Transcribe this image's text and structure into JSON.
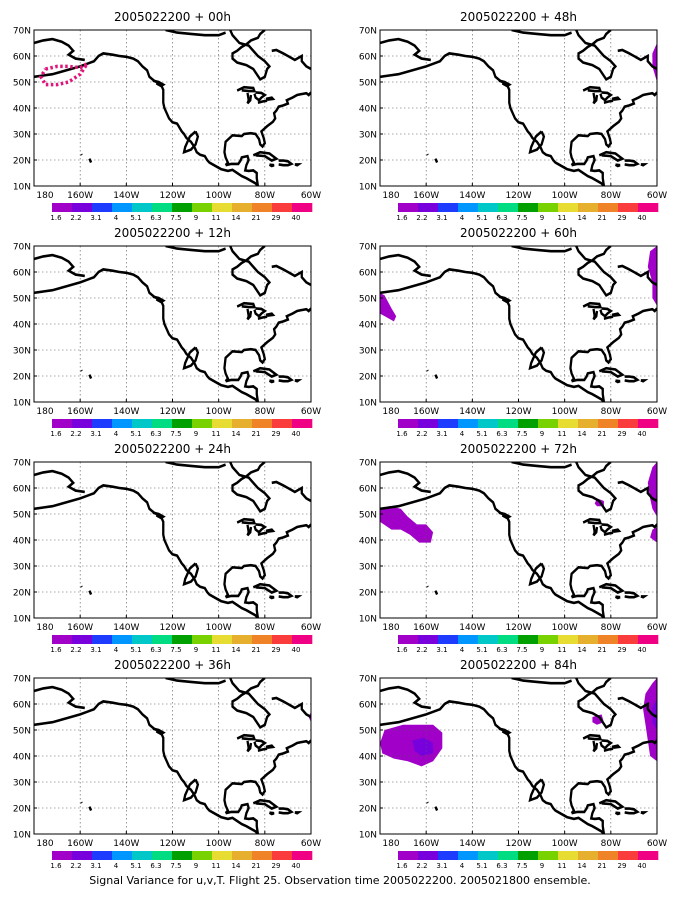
{
  "colorbar": {
    "labels": [
      "1.6",
      "2.2",
      "3.1",
      "4",
      "5.1",
      "6.3",
      "7.5",
      "9",
      "11",
      "14",
      "21",
      "29",
      "40"
    ],
    "colors": [
      "#a000c8",
      "#7800dc",
      "#1e3cff",
      "#0096ff",
      "#00c8c8",
      "#00dc82",
      "#00a000",
      "#78d200",
      "#e6dc32",
      "#e6af2d",
      "#f08228",
      "#fa3c3c",
      "#f00082"
    ]
  },
  "footer": "Signal Variance for u,v,T. Flight 25. Observation time 2005022200. 2005021800 ensemble.",
  "chart_data": [
    {
      "type": "heatmap",
      "title": "2005022200 + 00h",
      "x_ticks": [
        "180",
        "160W",
        "140W",
        "120W",
        "100W",
        "80W",
        "60W"
      ],
      "y_ticks": [
        "10N",
        "20N",
        "30N",
        "40N",
        "50N",
        "60N",
        "70N"
      ],
      "xlim": [
        -180,
        -60
      ],
      "ylim": [
        10,
        70
      ],
      "grid": true,
      "annotation": "dotted flight track (pink)",
      "features": []
    },
    {
      "type": "heatmap",
      "title": "2005022200 + 12h",
      "x_ticks": [
        "180",
        "160W",
        "140W",
        "120W",
        "100W",
        "80W",
        "60W"
      ],
      "y_ticks": [
        "10N",
        "20N",
        "30N",
        "40N",
        "50N",
        "60N",
        "70N"
      ],
      "xlim": [
        -180,
        -60
      ],
      "ylim": [
        10,
        70
      ],
      "grid": true,
      "features": []
    },
    {
      "type": "heatmap",
      "title": "2005022200 + 24h",
      "x_ticks": [
        "180",
        "160W",
        "140W",
        "120W",
        "100W",
        "80W",
        "60W"
      ],
      "y_ticks": [
        "10N",
        "20N",
        "30N",
        "40N",
        "50N",
        "60N",
        "70N"
      ],
      "xlim": [
        -180,
        -60
      ],
      "ylim": [
        10,
        70
      ],
      "grid": true,
      "features": []
    },
    {
      "type": "heatmap",
      "title": "2005022200 + 36h",
      "x_ticks": [
        "180",
        "160W",
        "140W",
        "120W",
        "100W",
        "80W",
        "60W"
      ],
      "y_ticks": [
        "10N",
        "20N",
        "30N",
        "40N",
        "50N",
        "60N",
        "70N"
      ],
      "xlim": [
        -180,
        -60
      ],
      "ylim": [
        10,
        70
      ],
      "grid": true,
      "features": [
        {
          "value": 1.6,
          "pts": [
            [
              -60,
              57
            ],
            [
              -61,
              55
            ],
            [
              -60,
              53
            ]
          ]
        }
      ]
    },
    {
      "type": "heatmap",
      "title": "2005022200 + 48h",
      "x_ticks": [
        "180",
        "160W",
        "140W",
        "120W",
        "100W",
        "80W",
        "60W"
      ],
      "y_ticks": [
        "10N",
        "20N",
        "30N",
        "40N",
        "50N",
        "60N",
        "70N"
      ],
      "xlim": [
        -180,
        -60
      ],
      "ylim": [
        10,
        70
      ],
      "grid": true,
      "features": [
        {
          "value": 1.6,
          "pts": [
            [
              -60,
              65
            ],
            [
              -62,
              61
            ],
            [
              -62,
              56
            ],
            [
              -60,
              50
            ]
          ]
        }
      ]
    },
    {
      "type": "heatmap",
      "title": "2005022200 + 60h",
      "x_ticks": [
        "180",
        "160W",
        "140W",
        "120W",
        "100W",
        "80W",
        "60W"
      ],
      "y_ticks": [
        "10N",
        "20N",
        "30N",
        "40N",
        "50N",
        "60N",
        "70N"
      ],
      "xlim": [
        -180,
        -60
      ],
      "ylim": [
        10,
        70
      ],
      "grid": true,
      "features": [
        {
          "value": 1.6,
          "pts": [
            [
              -180,
              52
            ],
            [
              -178,
              51
            ],
            [
              -175,
              46
            ],
            [
              -173,
              43
            ],
            [
              -174,
              41
            ],
            [
              -176,
              42
            ],
            [
              -180,
              44
            ]
          ]
        },
        {
          "value": 1.6,
          "pts": [
            [
              -60,
              70
            ],
            [
              -63,
              68
            ],
            [
              -64,
              62
            ],
            [
              -62,
              56
            ],
            [
              -62,
              50
            ],
            [
              -60,
              47
            ]
          ]
        }
      ]
    },
    {
      "type": "heatmap",
      "title": "2005022200 + 72h",
      "x_ticks": [
        "180",
        "160W",
        "140W",
        "120W",
        "100W",
        "80W",
        "60W"
      ],
      "y_ticks": [
        "10N",
        "20N",
        "30N",
        "40N",
        "50N",
        "60N",
        "70N"
      ],
      "xlim": [
        -180,
        -60
      ],
      "ylim": [
        10,
        70
      ],
      "grid": true,
      "features": [
        {
          "value": 1.6,
          "pts": [
            [
              -180,
              52
            ],
            [
              -176,
              53
            ],
            [
              -171,
              52
            ],
            [
              -168,
              49
            ],
            [
              -164,
              46
            ],
            [
              -160,
              46
            ],
            [
              -157,
              43
            ],
            [
              -158,
              39
            ],
            [
              -163,
              39
            ],
            [
              -167,
              42
            ],
            [
              -171,
              44
            ],
            [
              -175,
              44
            ],
            [
              -180,
              47
            ]
          ]
        },
        {
          "value": 1.6,
          "pts": [
            [
              -86,
              56
            ],
            [
              -83,
              55
            ],
            [
              -83,
              53
            ],
            [
              -86,
              53
            ],
            [
              -87,
              54
            ]
          ]
        },
        {
          "value": 1.6,
          "pts": [
            [
              -60,
              70
            ],
            [
              -62,
              68
            ],
            [
              -64,
              62
            ],
            [
              -63,
              56
            ],
            [
              -62,
              52
            ],
            [
              -60,
              49
            ]
          ]
        },
        {
          "value": 1.6,
          "pts": [
            [
              -60,
              45
            ],
            [
              -62,
              44
            ],
            [
              -63,
              41
            ],
            [
              -60,
              39
            ]
          ]
        }
      ]
    },
    {
      "type": "heatmap",
      "title": "2005022200 + 84h",
      "x_ticks": [
        "180",
        "160W",
        "140W",
        "120W",
        "100W",
        "80W",
        "60W"
      ],
      "y_ticks": [
        "10N",
        "20N",
        "30N",
        "40N",
        "50N",
        "60N",
        "70N"
      ],
      "xlim": [
        -180,
        -60
      ],
      "ylim": [
        10,
        70
      ],
      "grid": true,
      "features": [
        {
          "value": 1.6,
          "pts": [
            [
              -178,
              50
            ],
            [
              -170,
              52
            ],
            [
              -164,
              52
            ],
            [
              -157,
              52
            ],
            [
              -153,
              49
            ],
            [
              -153,
              43
            ],
            [
              -157,
              38
            ],
            [
              -162,
              36
            ],
            [
              -168,
              38
            ],
            [
              -174,
              39
            ],
            [
              -179,
              41
            ],
            [
              -180,
              45
            ]
          ]
        },
        {
          "value": 2.2,
          "pts": [
            [
              -166,
              46
            ],
            [
              -161,
              47
            ],
            [
              -157,
              45
            ],
            [
              -157,
              41
            ],
            [
              -162,
              40
            ],
            [
              -165,
              42
            ]
          ]
        },
        {
          "value": 1.6,
          "pts": [
            [
              -88,
              55
            ],
            [
              -84,
              56
            ],
            [
              -83,
              53
            ],
            [
              -86,
              52
            ],
            [
              -88,
              53
            ]
          ]
        },
        {
          "value": 1.6,
          "pts": [
            [
              -60,
              70
            ],
            [
              -62,
              68
            ],
            [
              -65,
              64
            ],
            [
              -66,
              58
            ],
            [
              -65,
              52
            ],
            [
              -64,
              46
            ],
            [
              -63,
              40
            ],
            [
              -60,
              38
            ]
          ]
        },
        {
          "value": 2.2,
          "pts": [
            [
              -60,
              62
            ],
            [
              -62,
              59
            ],
            [
              -62,
              53
            ],
            [
              -60,
              50
            ]
          ]
        }
      ]
    }
  ]
}
